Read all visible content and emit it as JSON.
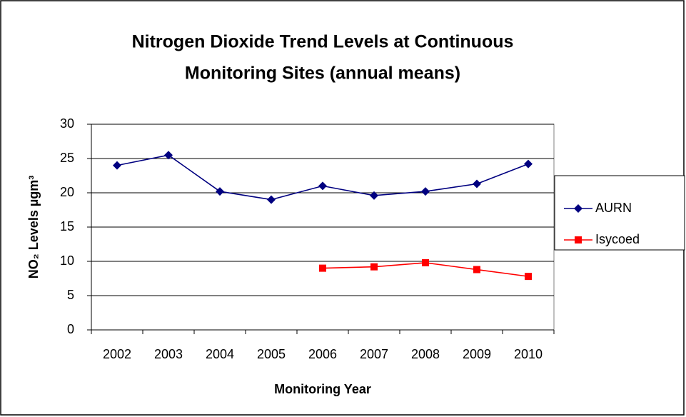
{
  "chart_data": {
    "type": "line",
    "title": [
      "Nitrogen Dioxide Trend Levels at Continuous",
      "Monitoring Sites (annual means)"
    ],
    "x_label": "Monitoring Year",
    "y_label": "NO₂ Levels µgm³",
    "categories": [
      "2002",
      "2003",
      "2004",
      "2005",
      "2006",
      "2007",
      "2008",
      "2009",
      "2010"
    ],
    "series": [
      {
        "name": "AURN",
        "color": "#000080",
        "marker": "diamond",
        "values": [
          24,
          25.5,
          20.2,
          19,
          21,
          19.6,
          20.2,
          21.3,
          24.2
        ]
      },
      {
        "name": "Isycoed",
        "color": "#ff0000",
        "marker": "square",
        "values": [
          null,
          null,
          null,
          null,
          9,
          9.2,
          9.8,
          8.8,
          7.8
        ]
      }
    ],
    "ylim": [
      0,
      30
    ],
    "yticks": [
      0,
      5,
      10,
      15,
      20,
      25,
      30
    ],
    "grid": true,
    "legend": "right"
  }
}
